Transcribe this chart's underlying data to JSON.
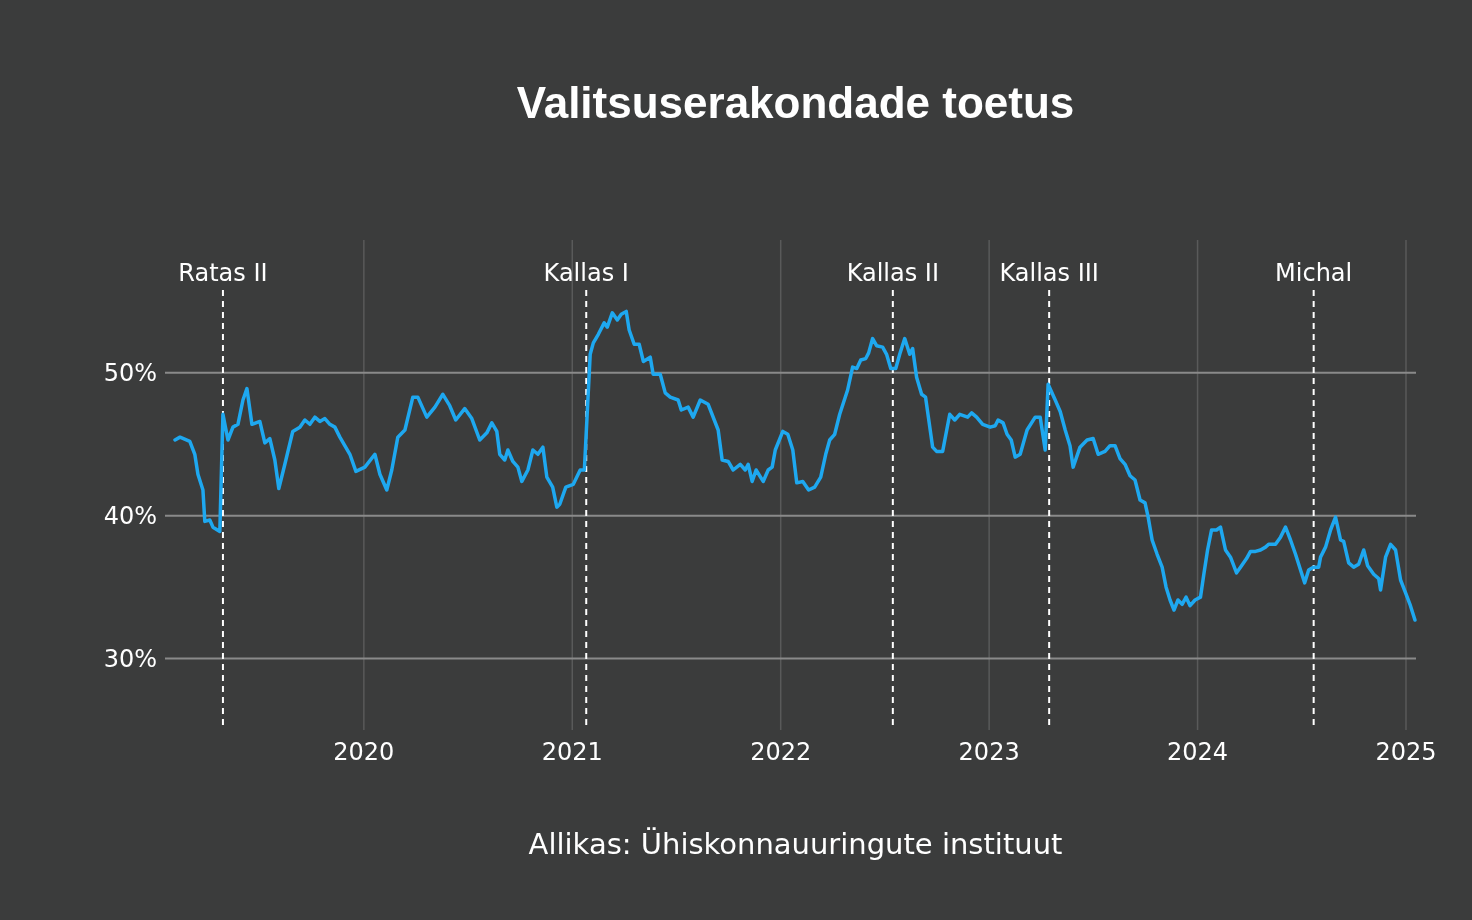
{
  "chart_data": {
    "type": "line",
    "title": "Valitsuserakondade toetus",
    "annotations": [
      "Allikas: Ühiskonnauuringute instituut"
    ],
    "xlim": [
      2019.046,
      2025.048
    ],
    "ylim": [
      25,
      59.3
    ],
    "xticks": [
      2020,
      2021,
      2022,
      2023,
      2024,
      2025
    ],
    "yticks": [
      {
        "value": 30,
        "label": "30%"
      },
      {
        "value": 40,
        "label": "40%"
      },
      {
        "value": 50,
        "label": "50%"
      }
    ],
    "grid": true,
    "ref_lines": [
      {
        "axis": "x",
        "value": 2019.324,
        "label": "Ratas II",
        "color": "#ffffff",
        "line_style": "dashed"
      },
      {
        "axis": "x",
        "value": 2021.067,
        "label": "Kallas I",
        "color": "#ffffff",
        "line_style": "dashed"
      },
      {
        "axis": "x",
        "value": 2022.538,
        "label": "Kallas II",
        "color": "#ffffff",
        "line_style": "dashed"
      },
      {
        "axis": "x",
        "value": 2023.288,
        "label": "Kallas III",
        "color": "#ffffff",
        "line_style": "dashed"
      },
      {
        "axis": "x",
        "value": 2024.557,
        "label": "Michal",
        "color": "#ffffff",
        "line_style": "dashed"
      }
    ],
    "series": [
      {
        "color": "#1ea8f0",
        "x": [
          2019.094,
          2019.118,
          2019.165,
          2019.189,
          2019.204,
          2019.228,
          2019.237,
          2019.261,
          2019.276,
          2019.309,
          2019.324,
          2019.348,
          2019.372,
          2019.396,
          2019.42,
          2019.439,
          2019.463,
          2019.501,
          2019.525,
          2019.549,
          2019.573,
          2019.592,
          2019.621,
          2019.659,
          2019.693,
          2019.717,
          2019.741,
          2019.765,
          2019.789,
          2019.813,
          2019.837,
          2019.861,
          2019.885,
          2019.933,
          2019.962,
          2020.005,
          2020.053,
          2020.077,
          2020.11,
          2020.134,
          2020.163,
          2020.197,
          2020.235,
          2020.259,
          2020.302,
          2020.341,
          2020.379,
          2020.412,
          2020.441,
          2020.484,
          2020.518,
          2020.556,
          2020.59,
          2020.614,
          2020.638,
          2020.652,
          2020.676,
          2020.691,
          2020.715,
          2020.739,
          2020.758,
          2020.787,
          2020.811,
          2020.835,
          2020.859,
          2020.878,
          2020.906,
          2020.926,
          2020.94,
          2020.969,
          2021.005,
          2021.038,
          2021.058,
          2021.086,
          2021.101,
          2021.125,
          2021.153,
          2021.168,
          2021.192,
          2021.216,
          2021.235,
          2021.259,
          2021.273,
          2021.297,
          2021.321,
          2021.341,
          2021.374,
          2021.388,
          2021.422,
          2021.446,
          2021.47,
          2021.508,
          2021.523,
          2021.556,
          2021.58,
          2021.614,
          2021.652,
          2021.7,
          2021.719,
          2021.748,
          2021.772,
          2021.806,
          2021.83,
          2021.844,
          2021.863,
          2021.882,
          2021.916,
          2021.94,
          2021.959,
          2021.974,
          2022.01,
          2022.034,
          2022.058,
          2022.077,
          2022.106,
          2022.134,
          2022.163,
          2022.192,
          2022.216,
          2022.235,
          2022.259,
          2022.283,
          2022.321,
          2022.345,
          2022.365,
          2022.384,
          2022.408,
          2022.422,
          2022.441,
          2022.46,
          2022.489,
          2022.508,
          2022.528,
          2022.552,
          2022.571,
          2022.595,
          2022.619,
          2022.633,
          2022.652,
          2022.676,
          2022.695,
          2022.729,
          2022.748,
          2022.777,
          2022.811,
          2022.835,
          2022.859,
          2022.897,
          2022.916,
          2022.94,
          2022.969,
          2023.005,
          2023.029,
          2023.043,
          2023.067,
          2023.086,
          2023.106,
          2023.125,
          2023.149,
          2023.182,
          2023.221,
          2023.245,
          2023.269,
          2023.283,
          2023.317,
          2023.341,
          2023.365,
          2023.388,
          2023.403,
          2023.436,
          2023.47,
          2023.499,
          2023.523,
          2023.556,
          2023.58,
          2023.604,
          2023.628,
          2023.652,
          2023.676,
          2023.7,
          2023.724,
          2023.748,
          2023.763,
          2023.782,
          2023.806,
          2023.83,
          2023.849,
          2023.868,
          2023.887,
          2023.906,
          2023.926,
          2023.945,
          2023.964,
          2023.988,
          2024.014,
          2024.029,
          2024.048,
          2024.067,
          2024.091,
          2024.11,
          2024.134,
          2024.158,
          2024.187,
          2024.206,
          2024.235,
          2024.254,
          2024.278,
          2024.302,
          2024.326,
          2024.341,
          2024.374,
          2024.398,
          2024.422,
          2024.446,
          2024.47,
          2024.494,
          2024.514,
          2024.533,
          2024.557,
          2024.581,
          2024.59,
          2024.614,
          2024.638,
          2024.662,
          2024.686,
          2024.701,
          2024.725,
          2024.749,
          2024.773,
          2024.797,
          2024.816,
          2024.845,
          2024.869,
          2024.878,
          2024.902,
          2024.926,
          2024.95,
          2024.974,
          2024.998,
          2025.019,
          2025.043
        ],
        "values": [
          45.3,
          45.5,
          45.2,
          44.3,
          42.9,
          41.8,
          39.6,
          39.7,
          39.2,
          38.9,
          47.1,
          45.3,
          46.2,
          46.4,
          48.1,
          48.9,
          46.4,
          46.6,
          45.1,
          45.4,
          43.9,
          41.9,
          43.6,
          45.9,
          46.2,
          46.7,
          46.4,
          46.9,
          46.6,
          46.8,
          46.4,
          46.2,
          45.5,
          44.3,
          43.1,
          43.4,
          44.3,
          42.9,
          41.8,
          43.2,
          45.5,
          46.0,
          48.3,
          48.3,
          46.9,
          47.6,
          48.5,
          47.7,
          46.7,
          47.5,
          46.8,
          45.3,
          45.8,
          46.5,
          45.9,
          44.3,
          43.9,
          44.6,
          43.8,
          43.4,
          42.4,
          43.2,
          44.6,
          44.3,
          44.8,
          42.7,
          42.0,
          40.6,
          40.8,
          42.0,
          42.2,
          43.2,
          43.2,
          51.3,
          52.1,
          52.7,
          53.5,
          53.2,
          54.2,
          53.7,
          54.1,
          54.3,
          53.0,
          52.0,
          52.0,
          50.8,
          51.1,
          49.9,
          49.9,
          48.6,
          48.3,
          48.1,
          47.4,
          47.6,
          46.9,
          48.1,
          47.8,
          46.0,
          43.9,
          43.8,
          43.2,
          43.6,
          43.2,
          43.6,
          42.4,
          43.2,
          42.4,
          43.2,
          43.4,
          44.6,
          45.9,
          45.7,
          44.6,
          42.3,
          42.4,
          41.8,
          42.0,
          42.7,
          44.3,
          45.3,
          45.7,
          47.1,
          48.8,
          50.4,
          50.3,
          50.9,
          51.0,
          51.4,
          52.4,
          51.9,
          51.8,
          51.3,
          50.3,
          50.3,
          51.3,
          52.4,
          51.3,
          51.7,
          49.7,
          48.5,
          48.3,
          44.8,
          44.5,
          44.5,
          47.1,
          46.7,
          47.1,
          46.9,
          47.2,
          46.9,
          46.4,
          46.2,
          46.3,
          46.7,
          46.5,
          45.7,
          45.3,
          44.1,
          44.3,
          46.0,
          46.9,
          46.9,
          44.6,
          49.2,
          48.1,
          47.3,
          46.0,
          44.9,
          43.4,
          44.8,
          45.3,
          45.4,
          44.3,
          44.5,
          44.9,
          44.9,
          44.0,
          43.6,
          42.8,
          42.5,
          41.1,
          40.9,
          39.9,
          38.3,
          37.3,
          36.4,
          35.0,
          34.1,
          33.4,
          34.1,
          33.8,
          34.3,
          33.7,
          34.1,
          34.3,
          35.8,
          37.6,
          39.0,
          39.0,
          39.2,
          37.6,
          37.1,
          36.0,
          36.4,
          37.0,
          37.5,
          37.5,
          37.6,
          37.8,
          38.0,
          38.0,
          38.5,
          39.2,
          38.3,
          37.3,
          36.2,
          35.3,
          36.2,
          36.4,
          36.4,
          37.1,
          37.8,
          39.0,
          39.9,
          38.3,
          38.2,
          36.7,
          36.4,
          36.6,
          37.6,
          36.5,
          35.9,
          35.6,
          34.8,
          37.1,
          38.0,
          37.6,
          35.5,
          34.6,
          33.8,
          32.7
        ]
      }
    ]
  }
}
